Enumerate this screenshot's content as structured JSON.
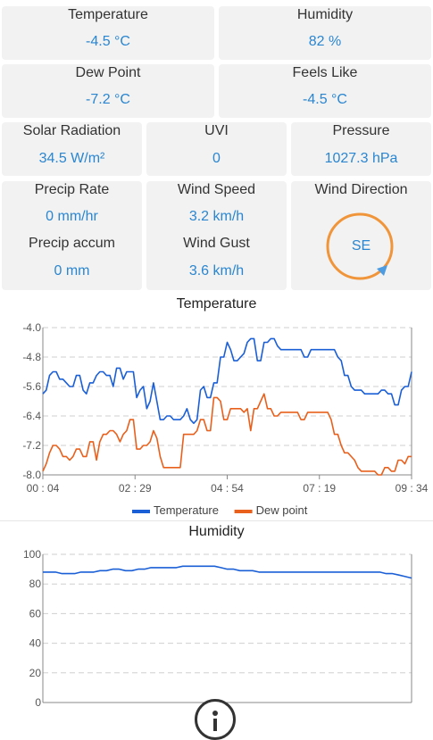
{
  "cards": {
    "temperature": {
      "label": "Temperature",
      "value": "-4.5 °C"
    },
    "humidity": {
      "label": "Humidity",
      "value": "82 %"
    },
    "dew_point": {
      "label": "Dew Point",
      "value": "-7.2 °C"
    },
    "feels_like": {
      "label": "Feels Like",
      "value": "-4.5 °C"
    },
    "solar": {
      "label": "Solar Radiation",
      "value": "34.5 W/m²"
    },
    "uvi": {
      "label": "UVI",
      "value": "0"
    },
    "pressure": {
      "label": "Pressure",
      "value": "1027.3 hPa"
    },
    "precip_rate": {
      "label": "Precip Rate",
      "value": "0 mm/hr"
    },
    "precip_accum": {
      "label": "Precip accum",
      "value": "0 mm"
    },
    "wind_speed": {
      "label": "Wind Speed",
      "value": "3.2 km/h"
    },
    "wind_gust": {
      "label": "Wind Gust",
      "value": "3.6 km/h"
    },
    "wind_direction": {
      "label": "Wind Direction",
      "value": "SE"
    }
  },
  "colors": {
    "temperature": "#1a5fd6",
    "dew_point": "#e8601c",
    "humidity": "#1a5fd6",
    "compass": "#f0953a"
  },
  "chart_data": [
    {
      "type": "line",
      "title": "Temperature",
      "ylim": [
        -8.0,
        -4.0
      ],
      "yticks": [
        "-4.0",
        "-4.8",
        "-5.6",
        "-6.4",
        "-7.2",
        "-8.0"
      ],
      "xticks": [
        "00 : 04",
        "02 : 29",
        "04 : 54",
        "07 : 19",
        "09 : 34"
      ],
      "legend": [
        "Temperature",
        "Dew point"
      ],
      "series": [
        {
          "name": "Temperature",
          "values": [
            -5.8,
            -5.7,
            -5.3,
            -5.2,
            -5.2,
            -5.4,
            -5.4,
            -5.5,
            -5.6,
            -5.6,
            -5.3,
            -5.3,
            -5.7,
            -5.8,
            -5.5,
            -5.5,
            -5.3,
            -5.2,
            -5.2,
            -5.3,
            -5.3,
            -5.6,
            -5.1,
            -5.1,
            -5.4,
            -5.2,
            -5.2,
            -5.2,
            -5.9,
            -5.7,
            -5.6,
            -6.2,
            -6.0,
            -5.5,
            -6.0,
            -6.5,
            -6.5,
            -6.4,
            -6.4,
            -6.5,
            -6.5,
            -6.5,
            -6.4,
            -6.2,
            -6.5,
            -6.6,
            -6.5,
            -5.7,
            -5.6,
            -5.9,
            -5.9,
            -5.5,
            -5.5,
            -4.8,
            -4.8,
            -4.4,
            -4.6,
            -4.9,
            -4.9,
            -4.8,
            -4.7,
            -4.4,
            -4.3,
            -4.3,
            -4.9,
            -4.9,
            -4.4,
            -4.4,
            -4.3,
            -4.3,
            -4.5,
            -4.6,
            -4.6,
            -4.6,
            -4.6,
            -4.6,
            -4.6,
            -4.6,
            -4.8,
            -4.8,
            -4.6,
            -4.6,
            -4.6,
            -4.6,
            -4.6,
            -4.6,
            -4.6,
            -4.6,
            -4.8,
            -4.9,
            -5.3,
            -5.3,
            -5.6,
            -5.7,
            -5.7,
            -5.7,
            -5.8,
            -5.8,
            -5.8,
            -5.8,
            -5.8,
            -5.7,
            -5.7,
            -5.8,
            -5.8,
            -6.1,
            -6.1,
            -5.7,
            -5.6,
            -5.6,
            -5.2
          ]
        },
        {
          "name": "Dew point",
          "values": [
            -7.9,
            -7.7,
            -7.4,
            -7.2,
            -7.2,
            -7.3,
            -7.5,
            -7.5,
            -7.6,
            -7.5,
            -7.3,
            -7.3,
            -7.5,
            -7.5,
            -7.1,
            -7.1,
            -7.6,
            -7.1,
            -6.9,
            -6.9,
            -6.8,
            -6.8,
            -6.9,
            -7.1,
            -6.9,
            -6.8,
            -6.5,
            -6.5,
            -7.3,
            -7.3,
            -7.2,
            -7.2,
            -7.1,
            -6.8,
            -7.0,
            -7.5,
            -7.8,
            -7.8,
            -7.8,
            -7.8,
            -7.8,
            -7.8,
            -6.9,
            -6.9,
            -6.9,
            -6.9,
            -6.8,
            -6.5,
            -6.5,
            -6.8,
            -6.8,
            -5.9,
            -5.9,
            -6.0,
            -6.5,
            -6.5,
            -6.2,
            -6.2,
            -6.2,
            -6.2,
            -6.3,
            -6.2,
            -6.8,
            -6.2,
            -6.2,
            -6.0,
            -5.8,
            -6.2,
            -6.2,
            -6.4,
            -6.4,
            -6.3,
            -6.3,
            -6.3,
            -6.3,
            -6.3,
            -6.3,
            -6.5,
            -6.5,
            -6.3,
            -6.3,
            -6.3,
            -6.3,
            -6.3,
            -6.3,
            -6.3,
            -6.5,
            -6.9,
            -6.9,
            -7.2,
            -7.4,
            -7.4,
            -7.5,
            -7.6,
            -7.8,
            -7.9,
            -7.9,
            -7.9,
            -7.9,
            -7.9,
            -8.0,
            -8.0,
            -7.8,
            -7.8,
            -7.9,
            -7.9,
            -7.6,
            -7.6,
            -7.7,
            -7.5,
            -7.5
          ]
        }
      ]
    },
    {
      "type": "line",
      "title": "Humidity",
      "ylim": [
        0,
        100
      ],
      "yticks": [
        "100",
        "80",
        "60",
        "40",
        "20",
        "0"
      ],
      "series": [
        {
          "name": "Humidity",
          "values": [
            88,
            88,
            88,
            87,
            87,
            87,
            88,
            88,
            88,
            89,
            89,
            90,
            90,
            89,
            89,
            90,
            90,
            91,
            91,
            91,
            91,
            91,
            92,
            92,
            92,
            92,
            92,
            92,
            91,
            90,
            90,
            89,
            89,
            89,
            88,
            88,
            88,
            88,
            88,
            88,
            88,
            88,
            88,
            88,
            88,
            88,
            88,
            88,
            88,
            88,
            88,
            88,
            88,
            88,
            87,
            87,
            86,
            85,
            84
          ]
        }
      ]
    }
  ]
}
